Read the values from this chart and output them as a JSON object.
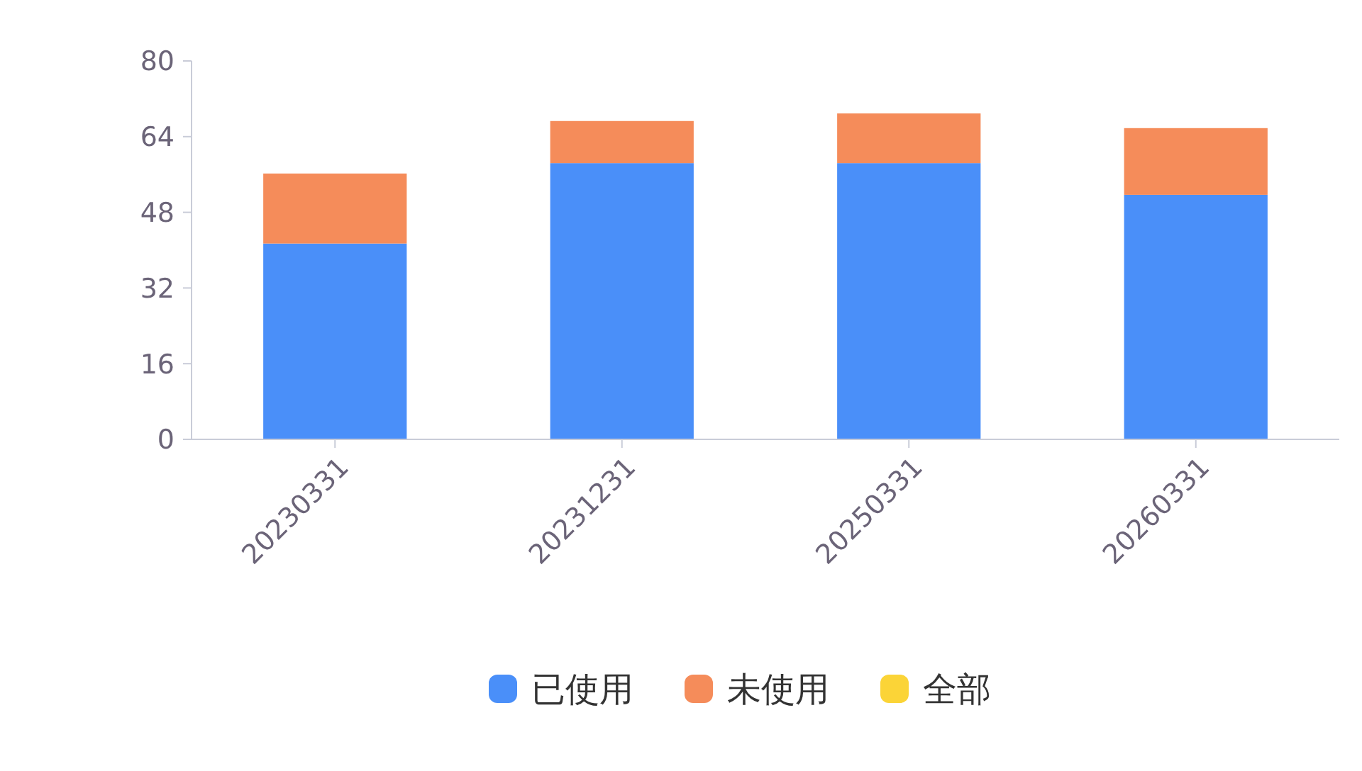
{
  "chart_data": {
    "type": "bar",
    "stacked": true,
    "categories": [
      "20230331",
      "20231231",
      "20250331",
      "20260331"
    ],
    "series": [
      {
        "name": "已使用",
        "color": "#4a8ff9",
        "values": [
          41.4,
          58.4,
          58.4,
          51.7
        ]
      },
      {
        "name": "未使用",
        "color": "#f58c5a",
        "values": [
          14.8,
          8.9,
          10.5,
          14.1
        ]
      },
      {
        "name": "全部",
        "color": "#fbd437",
        "values": [
          null,
          null,
          null,
          null
        ]
      }
    ],
    "ylim": [
      0,
      80
    ],
    "yticks": [
      0,
      16,
      32,
      48,
      64,
      80
    ],
    "grid": false,
    "legend": "bottom"
  }
}
